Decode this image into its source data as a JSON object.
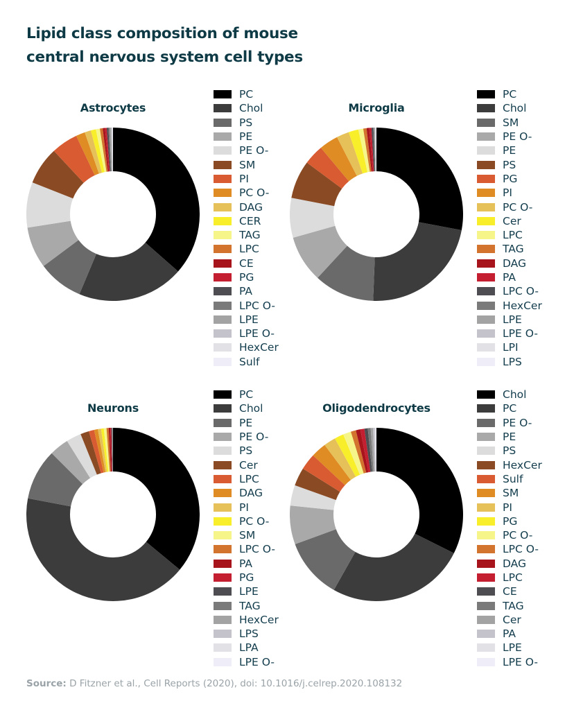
{
  "title_line1": "Lipid class composition of mouse",
  "title_line2": "central nervous system cell types",
  "source_label": "Source:",
  "source_text": "D Fitzner et al., Cell Reports (2020), doi: 10.1016/j.celrep.2020.108132",
  "chart_data": [
    {
      "type": "pie",
      "donut": true,
      "title": "Astrocytes",
      "legend_placement": "right",
      "start_angle_deg": 0,
      "direction": "clockwise",
      "labels": [
        "PC",
        "Chol",
        "PS",
        "PE",
        "PE O-",
        "SM",
        "PI",
        "PC O-",
        "DAG",
        "CER",
        "TAG",
        "LPC",
        "CE",
        "PG",
        "PA",
        "LPC O-",
        "LPE",
        "LPE O-",
        "HexCer",
        "Sulf"
      ],
      "colors": [
        "#000000",
        "#3c3c3c",
        "#6a6a6a",
        "#a9a9a9",
        "#dcdcdc",
        "#8a4a24",
        "#d95b32",
        "#df8c24",
        "#e6c15a",
        "#f8ee2a",
        "#f5f58a",
        "#d2742e",
        "#a8141c",
        "#c41f30",
        "#4d4d52",
        "#7a7a7a",
        "#a3a3a3",
        "#c4c2ca",
        "#e2e2e6",
        "#efeef8"
      ],
      "values": [
        34.5,
        18.8,
        8.0,
        7.3,
        8.0,
        6.7,
        4.7,
        1.6,
        1.1,
        0.9,
        0.7,
        0.5,
        0.4,
        0.3,
        0.3,
        0.2,
        0.3,
        0.1,
        0.1,
        0.1
      ]
    },
    {
      "type": "pie",
      "donut": true,
      "title": "Microglia",
      "legend_placement": "right",
      "start_angle_deg": 0,
      "direction": "clockwise",
      "labels": [
        "PC",
        "Chol",
        "SM",
        "PE O-",
        "PE",
        "PS",
        "PG",
        "PI",
        "PC O-",
        "Cer",
        "LPC",
        "TAG",
        "DAG",
        "PA",
        "LPC O-",
        "HexCer",
        "LPE",
        "LPE O-",
        "LPI",
        "LPS"
      ],
      "colors": [
        "#000000",
        "#3c3c3c",
        "#6a6a6a",
        "#a9a9a9",
        "#dcdcdc",
        "#8a4a24",
        "#d95b32",
        "#df8c24",
        "#e6c15a",
        "#f8ee2a",
        "#f5f58a",
        "#d2742e",
        "#a8141c",
        "#c41f30",
        "#4d4d52",
        "#7a7a7a",
        "#a3a3a3",
        "#c4c2ca",
        "#e2e2e6",
        "#efeef8"
      ],
      "values": [
        27.5,
        22.3,
        11.1,
        8.6,
        7.3,
        7.0,
        3.7,
        3.5,
        2.3,
        1.8,
        0.9,
        0.6,
        0.5,
        0.4,
        0.3,
        0.2,
        0.1,
        0.1,
        0.1,
        0.1
      ]
    },
    {
      "type": "pie",
      "donut": true,
      "title": "Neurons",
      "legend_placement": "right",
      "start_angle_deg": 0,
      "direction": "clockwise",
      "labels": [
        "PC",
        "Chol",
        "PE",
        "PE O-",
        "PS",
        "Cer",
        "LPC",
        "DAG",
        "PI",
        "PC O-",
        "SM",
        "LPC O-",
        "PA",
        "PG",
        "LPE",
        "TAG",
        "HexCer",
        "LPS",
        "LPA",
        "LPE O-"
      ],
      "colors": [
        "#000000",
        "#3c3c3c",
        "#6a6a6a",
        "#a9a9a9",
        "#dcdcdc",
        "#8a4a24",
        "#d95b32",
        "#df8c24",
        "#e6c15a",
        "#f8ee2a",
        "#f5f58a",
        "#d2742e",
        "#a8141c",
        "#c41f30",
        "#4d4d52",
        "#7a7a7a",
        "#a3a3a3",
        "#c4c2ca",
        "#e2e2e6",
        "#efeef8"
      ],
      "values": [
        36.0,
        42.0,
        9.5,
        3.6,
        2.8,
        1.6,
        1.0,
        0.7,
        0.6,
        0.5,
        0.5,
        0.4,
        0.3,
        0.2,
        0.1,
        0.1,
        0.1,
        0.0,
        0.0,
        0.0
      ]
    },
    {
      "type": "pie",
      "donut": true,
      "title": "Oligodendrocytes",
      "legend_placement": "right",
      "start_angle_deg": 0,
      "direction": "clockwise",
      "labels": [
        "Chol",
        "PC",
        "PE O-",
        "PE",
        "PS",
        "HexCer",
        "Sulf",
        "SM",
        "PI",
        "PG",
        "PC O-",
        "LPC O-",
        "DAG",
        "LPC",
        "CE",
        "TAG",
        "Cer",
        "PA",
        "LPE",
        "LPE O-"
      ],
      "colors": [
        "#000000",
        "#3c3c3c",
        "#6a6a6a",
        "#a9a9a9",
        "#dcdcdc",
        "#8a4a24",
        "#d95b32",
        "#df8c24",
        "#e6c15a",
        "#f8ee2a",
        "#f5f58a",
        "#d2742e",
        "#a8141c",
        "#c41f30",
        "#4d4d52",
        "#7a7a7a",
        "#a3a3a3",
        "#c4c2ca",
        "#e2e2e6",
        "#efeef8"
      ],
      "values": [
        30.5,
        24.3,
        10.6,
        6.8,
        3.6,
        3.2,
        2.9,
        2.7,
        2.1,
        1.6,
        1.4,
        0.9,
        0.8,
        0.7,
        0.6,
        0.5,
        0.4,
        0.3,
        0.2,
        0.1
      ]
    }
  ]
}
